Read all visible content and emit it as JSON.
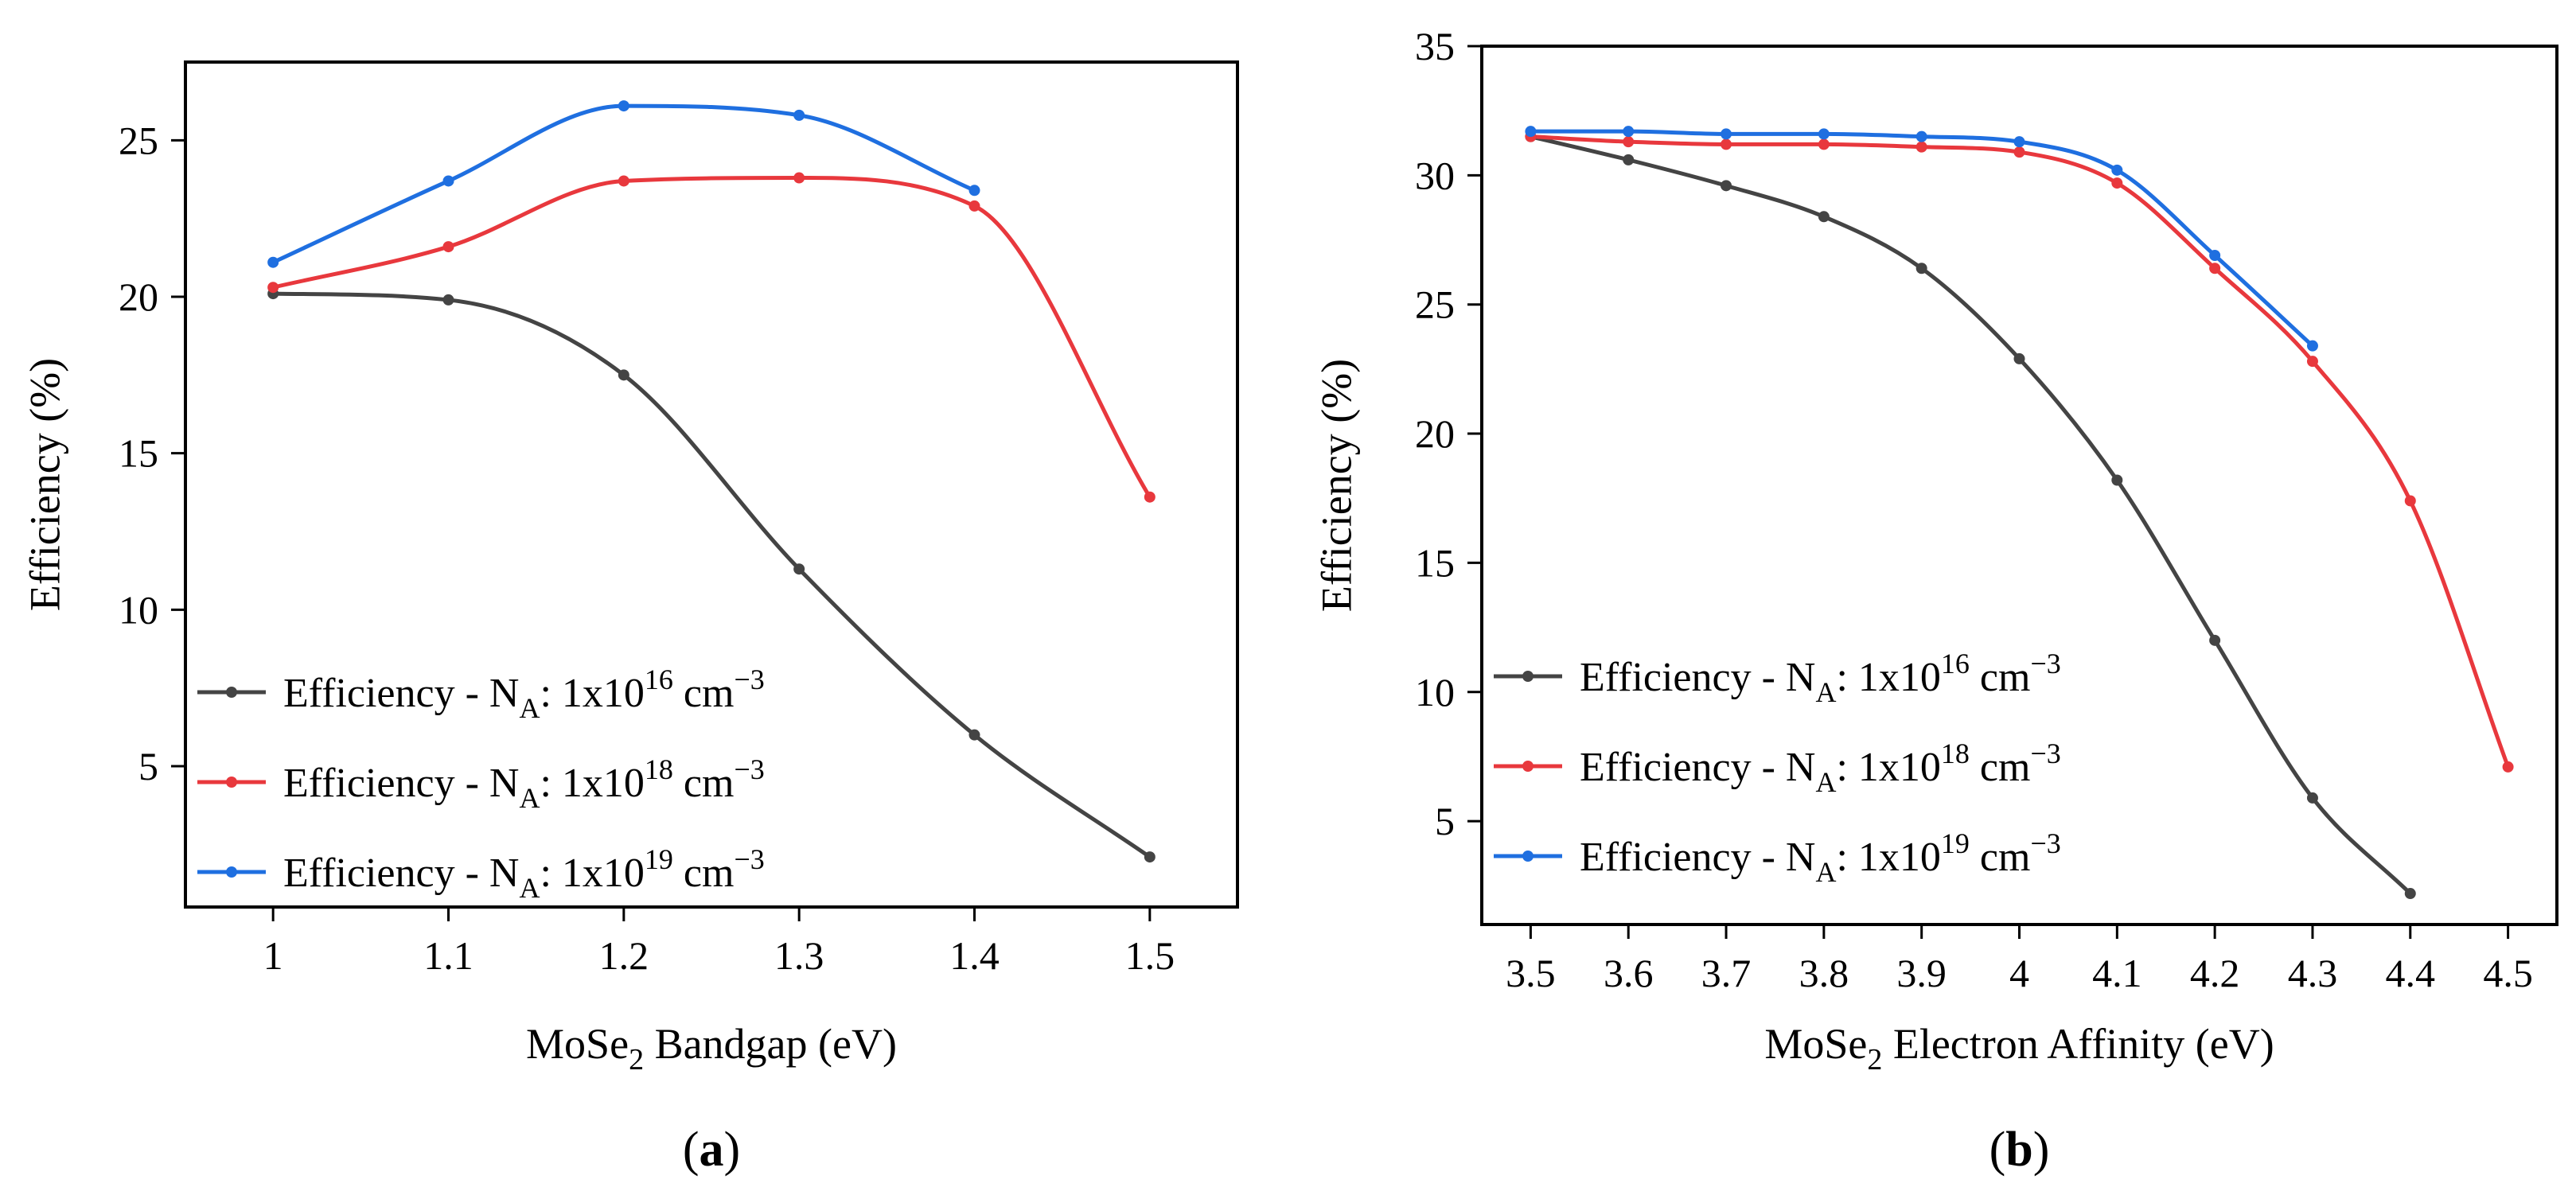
{
  "chart_data": [
    {
      "type": "line",
      "panel_label": "a",
      "xlabel": {
        "prefix": "MoSe",
        "sub": "2",
        "suffix": " Bandgap (eV)"
      },
      "ylabel": "Efficiency (%)",
      "xlim": [
        0.95,
        1.55
      ],
      "ylim": [
        0.5,
        27.5
      ],
      "xticks": [
        1,
        1.1,
        1.2,
        1.3,
        1.4,
        1.5
      ],
      "xtick_labels": [
        "1",
        "1.1",
        "1.2",
        "1.3",
        "1.4",
        "1.5"
      ],
      "yticks": [
        5,
        10,
        15,
        20,
        25
      ],
      "ytick_labels": [
        "5",
        "10",
        "15",
        "20",
        "25"
      ],
      "legend_position": "bottom-left",
      "series": [
        {
          "name": "Efficiency - N_A: 1x10^16 cm^-3",
          "legend": {
            "prefix": "Efficiency - N",
            "sub": "A",
            "mid": ": 1x10",
            "sup": "16",
            "unit": " cm",
            "unit_sup": "−3"
          },
          "color": "#444444",
          "x": [
            1.0,
            1.1,
            1.2,
            1.3,
            1.4,
            1.5
          ],
          "values": [
            20.1,
            19.9,
            17.5,
            11.3,
            6.0,
            2.1
          ]
        },
        {
          "name": "Efficiency - N_A: 1x10^18 cm^-3",
          "legend": {
            "prefix": "Efficiency - N",
            "sub": "A",
            "mid": ": 1x10",
            "sup": "18",
            "unit": " cm",
            "unit_sup": "−3"
          },
          "color": "#e8383d",
          "x": [
            1.0,
            1.1,
            1.2,
            1.3,
            1.4,
            1.5
          ],
          "values": [
            20.3,
            21.6,
            23.7,
            23.8,
            22.9,
            13.6
          ]
        },
        {
          "name": "Efficiency - N_A: 1x10^19 cm^-3",
          "legend": {
            "prefix": "Efficiency - N",
            "sub": "A",
            "mid": ": 1x10",
            "sup": "19",
            "unit": " cm",
            "unit_sup": "−3"
          },
          "color": "#1f6fe0",
          "x": [
            1.0,
            1.1,
            1.2,
            1.3,
            1.4
          ],
          "values": [
            21.1,
            23.7,
            26.1,
            25.8,
            23.4
          ]
        }
      ]
    },
    {
      "type": "line",
      "panel_label": "b",
      "xlabel": {
        "prefix": "MoSe",
        "sub": "2",
        "suffix": " Electron Affinity (eV)"
      },
      "ylabel": "Efficiency (%)",
      "xlim": [
        3.45,
        4.55
      ],
      "ylim": [
        1.0,
        35.0
      ],
      "xticks": [
        3.5,
        3.6,
        3.7,
        3.8,
        3.9,
        4.0,
        4.1,
        4.2,
        4.3,
        4.4,
        4.5
      ],
      "xtick_labels": [
        "3.5",
        "3.6",
        "3.7",
        "3.8",
        "3.9",
        "4",
        "4.1",
        "4.2",
        "4.3",
        "4.4",
        "4.5"
      ],
      "yticks": [
        5,
        10,
        15,
        20,
        25,
        30,
        35
      ],
      "ytick_labels": [
        "5",
        "10",
        "15",
        "20",
        "25",
        "30",
        "35"
      ],
      "legend_position": "bottom-left",
      "series": [
        {
          "name": "Efficiency - N_A: 1x10^16 cm^-3",
          "legend": {
            "prefix": "Efficiency - N",
            "sub": "A",
            "mid": ": 1x10",
            "sup": "16",
            "unit": " cm",
            "unit_sup": "−3"
          },
          "color": "#444444",
          "x": [
            3.5,
            3.6,
            3.7,
            3.8,
            3.9,
            4.0,
            4.1,
            4.2,
            4.3,
            4.4
          ],
          "values": [
            31.5,
            30.6,
            29.6,
            28.4,
            26.4,
            22.9,
            18.2,
            12.0,
            5.9,
            2.2
          ]
        },
        {
          "name": "Efficiency - N_A: 1x10^18 cm^-3",
          "legend": {
            "prefix": "Efficiency - N",
            "sub": "A",
            "mid": ": 1x10",
            "sup": "18",
            "unit": " cm",
            "unit_sup": "−3"
          },
          "color": "#e8383d",
          "x": [
            3.5,
            3.6,
            3.7,
            3.8,
            3.9,
            4.0,
            4.1,
            4.2,
            4.3,
            4.4,
            4.5
          ],
          "values": [
            31.5,
            31.3,
            31.2,
            31.2,
            31.1,
            30.9,
            29.7,
            26.4,
            22.8,
            17.4,
            7.1
          ]
        },
        {
          "name": "Efficiency - N_A: 1x10^19 cm^-3",
          "legend": {
            "prefix": "Efficiency - N",
            "sub": "A",
            "mid": ": 1x10",
            "sup": "19",
            "unit": " cm",
            "unit_sup": "−3"
          },
          "color": "#1f6fe0",
          "x": [
            3.5,
            3.6,
            3.7,
            3.8,
            3.9,
            4.0,
            4.1,
            4.2,
            4.3
          ],
          "values": [
            31.7,
            31.7,
            31.6,
            31.6,
            31.5,
            31.3,
            30.2,
            26.9,
            23.4
          ]
        }
      ]
    }
  ]
}
